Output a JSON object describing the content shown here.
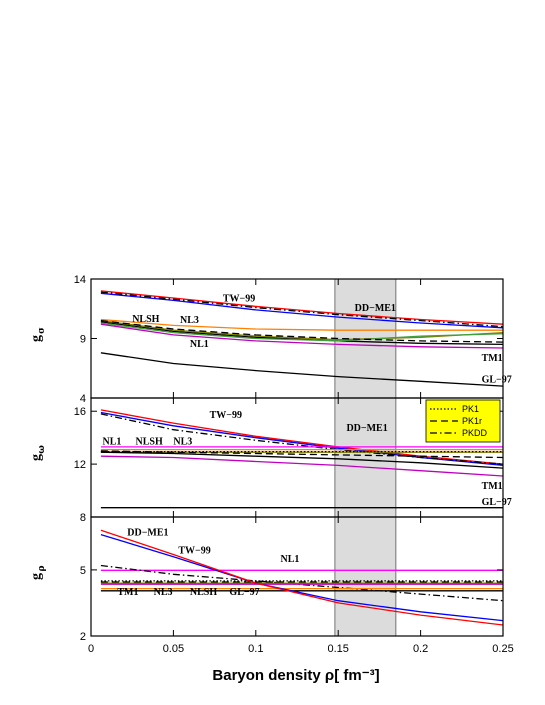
{
  "chart_data": {
    "type": "line",
    "xlabel": "Baryon density ρ[ fm⁻³]",
    "x_ticks": [
      "0",
      "0.05",
      "0.1",
      "0.15",
      "0.2",
      "0.25"
    ],
    "xlim": [
      0.0,
      0.25
    ],
    "shaded_band": [
      0.148,
      0.185
    ],
    "legend": {
      "placement": "top-right of middle panel",
      "entries": [
        {
          "label": "PK1",
          "dash": "dotted"
        },
        {
          "label": "PK1r",
          "dash": "dashed"
        },
        {
          "label": "PKDD",
          "dash": "dashdot"
        }
      ],
      "background": "#ffff00"
    },
    "panels": [
      {
        "id": "sigma",
        "ylabel": "g",
        "ylabel_sub": "σ",
        "ylim": [
          4,
          14
        ],
        "y_ticks": [
          "4",
          "9",
          "14"
        ],
        "labels": [
          {
            "text": "TW−99",
            "x": 0.08,
            "y": 12.1
          },
          {
            "text": "DD−ME1",
            "x": 0.16,
            "y": 11.3
          },
          {
            "text": "NLSH",
            "x": 0.025,
            "y": 10.4
          },
          {
            "text": "NL3",
            "x": 0.054,
            "y": 10.3
          },
          {
            "text": "NL1",
            "x": 0.06,
            "y": 8.3
          },
          {
            "text": "TM1",
            "x": 0.237,
            "y": 7.1
          },
          {
            "text": "GL−97",
            "x": 0.237,
            "y": 5.3
          }
        ],
        "series": [
          {
            "color": "#ff0000",
            "dash": "solid",
            "x": [
              0.006,
              0.05,
              0.1,
              0.15,
              0.2,
              0.25
            ],
            "y": [
              13.0,
              12.4,
              11.7,
              11.1,
              10.6,
              10.2
            ]
          },
          {
            "color": "#0000ff",
            "dash": "solid",
            "x": [
              0.006,
              0.05,
              0.1,
              0.15,
              0.2,
              0.25
            ],
            "y": [
              12.8,
              12.2,
              11.4,
              10.8,
              10.3,
              9.9
            ]
          },
          {
            "color": "#000000",
            "dash": "dashdot",
            "x": [
              0.006,
              0.05,
              0.1,
              0.15,
              0.2,
              0.25
            ],
            "y": [
              12.9,
              12.3,
              11.6,
              11.0,
              10.5,
              10.0
            ]
          },
          {
            "color": "#ff8000",
            "dash": "solid",
            "x": [
              0.006,
              0.05,
              0.1,
              0.15,
              0.2,
              0.25
            ],
            "y": [
              10.6,
              10.1,
              9.8,
              9.7,
              9.7,
              9.7
            ]
          },
          {
            "color": "#000000",
            "dash": "solid",
            "x": [
              0.006,
              0.05,
              0.1,
              0.15,
              0.2,
              0.25
            ],
            "y": [
              10.4,
              9.6,
              9.1,
              8.8,
              8.6,
              8.5
            ]
          },
          {
            "color": "#808000",
            "dash": "solid",
            "x": [
              0.006,
              0.05,
              0.1,
              0.15,
              0.2,
              0.25
            ],
            "y": [
              10.5,
              9.7,
              9.2,
              8.9,
              9.1,
              9.5
            ]
          },
          {
            "color": "#40a040",
            "dash": "solid",
            "x": [
              0.006,
              0.05,
              0.1,
              0.15,
              0.2,
              0.25
            ],
            "y": [
              10.3,
              9.5,
              9.0,
              8.8,
              9.2,
              9.4
            ]
          },
          {
            "color": "#000000",
            "dash": "dashed",
            "x": [
              0.006,
              0.05,
              0.1,
              0.15,
              0.2,
              0.25
            ],
            "y": [
              10.5,
              9.8,
              9.3,
              9.0,
              8.8,
              8.7
            ]
          },
          {
            "color": "#c000c0",
            "dash": "solid",
            "x": [
              0.006,
              0.05,
              0.1,
              0.15,
              0.2,
              0.25
            ],
            "y": [
              10.2,
              9.3,
              8.8,
              8.5,
              8.3,
              8.2
            ]
          },
          {
            "color": "#000000",
            "dash": "solid",
            "x": [
              0.006,
              0.05,
              0.1,
              0.15,
              0.2,
              0.25
            ],
            "y": [
              7.8,
              6.9,
              6.3,
              5.8,
              5.4,
              5.0
            ]
          }
        ]
      },
      {
        "id": "omega",
        "ylabel": "g",
        "ylabel_sub": "ω",
        "ylim": [
          8,
          17
        ],
        "y_ticks": [
          "8",
          "12",
          "16"
        ],
        "labels": [
          {
            "text": "TW−99",
            "x": 0.072,
            "y": 15.5
          },
          {
            "text": "DD−ME1",
            "x": 0.155,
            "y": 14.5
          },
          {
            "text": "NL1",
            "x": 0.007,
            "y": 13.5
          },
          {
            "text": "NLSH",
            "x": 0.027,
            "y": 13.5
          },
          {
            "text": "NL3",
            "x": 0.05,
            "y": 13.5
          },
          {
            "text": "TM1",
            "x": 0.237,
            "y": 10.1
          },
          {
            "text": "GL−97",
            "x": 0.237,
            "y": 8.9
          }
        ],
        "series": [
          {
            "color": "#ff0000",
            "dash": "solid",
            "x": [
              0.006,
              0.05,
              0.1,
              0.15,
              0.2,
              0.25
            ],
            "y": [
              16.1,
              15.1,
              14.1,
              13.3,
              12.6,
              12.0
            ]
          },
          {
            "color": "#0000ff",
            "dash": "solid",
            "x": [
              0.006,
              0.05,
              0.1,
              0.15,
              0.2,
              0.25
            ],
            "y": [
              15.9,
              14.9,
              14.0,
              13.2,
              12.5,
              11.9
            ]
          },
          {
            "color": "#000000",
            "dash": "dashdot",
            "x": [
              0.006,
              0.05,
              0.1,
              0.15,
              0.2,
              0.25
            ],
            "y": [
              15.8,
              14.6,
              13.8,
              13.1,
              12.5,
              12.0
            ]
          },
          {
            "color": "#ff00ff",
            "dash": "solid",
            "x": [
              0.006,
              0.25
            ],
            "y": [
              13.3,
              13.3
            ]
          },
          {
            "color": "#ff8000",
            "dash": "solid",
            "x": [
              0.006,
              0.25
            ],
            "y": [
              13.1,
              13.1
            ]
          },
          {
            "color": "#808000",
            "dash": "solid",
            "x": [
              0.006,
              0.25
            ],
            "y": [
              12.9,
              12.9
            ]
          },
          {
            "color": "#000000",
            "dash": "dotted",
            "x": [
              0.006,
              0.25
            ],
            "y": [
              12.95,
              12.95
            ]
          },
          {
            "color": "#000000",
            "dash": "dashed",
            "x": [
              0.006,
              0.05,
              0.1,
              0.15,
              0.2,
              0.25
            ],
            "y": [
              13.0,
              12.9,
              12.8,
              12.7,
              12.6,
              12.5
            ]
          },
          {
            "color": "#000000",
            "dash": "solid",
            "x": [
              0.006,
              0.05,
              0.1,
              0.15,
              0.2,
              0.25
            ],
            "y": [
              12.9,
              12.8,
              12.6,
              12.4,
              12.1,
              11.7
            ]
          },
          {
            "color": "#c000c0",
            "dash": "solid",
            "x": [
              0.006,
              0.05,
              0.1,
              0.15,
              0.2,
              0.25
            ],
            "y": [
              12.6,
              12.5,
              12.2,
              11.9,
              11.5,
              11.1
            ]
          },
          {
            "color": "#000000",
            "dash": "solid",
            "x": [
              0.006,
              0.25
            ],
            "y": [
              8.7,
              8.7
            ]
          }
        ]
      },
      {
        "id": "rho",
        "ylabel": "g",
        "ylabel_sub": "ρ",
        "ylim": [
          2,
          7.4
        ],
        "y_ticks": [
          "2",
          "5"
        ],
        "labels": [
          {
            "text": "DD−ME1",
            "x": 0.022,
            "y": 6.55
          },
          {
            "text": "TW−99",
            "x": 0.053,
            "y": 5.75
          },
          {
            "text": "NL1",
            "x": 0.115,
            "y": 5.35
          },
          {
            "text": "TM1",
            "x": 0.016,
            "y": 3.85
          },
          {
            "text": "NL3",
            "x": 0.038,
            "y": 3.85
          },
          {
            "text": "NLSH",
            "x": 0.06,
            "y": 3.85
          },
          {
            "text": "GL−97",
            "x": 0.084,
            "y": 3.85
          }
        ],
        "series": [
          {
            "color": "#ff00ff",
            "dash": "solid",
            "x": [
              0.006,
              0.25
            ],
            "y": [
              4.98,
              4.98
            ]
          },
          {
            "color": "#000000",
            "dash": "dashdot",
            "x": [
              0.006,
              0.05,
              0.1,
              0.15,
              0.2,
              0.25
            ],
            "y": [
              5.2,
              4.8,
              4.5,
              4.2,
              3.9,
              3.6
            ]
          },
          {
            "color": "#000000",
            "dash": "dotted",
            "x": [
              0.006,
              0.25
            ],
            "y": [
              4.5,
              4.5
            ]
          },
          {
            "color": "#000000",
            "dash": "dashed",
            "x": [
              0.006,
              0.25
            ],
            "y": [
              4.45,
              4.45
            ]
          },
          {
            "color": "#808000",
            "dash": "solid",
            "x": [
              0.006,
              0.25
            ],
            "y": [
              4.4,
              4.4
            ]
          },
          {
            "color": "#c000c0",
            "dash": "solid",
            "x": [
              0.006,
              0.25
            ],
            "y": [
              4.35,
              4.35
            ]
          },
          {
            "color": "#ff8000",
            "dash": "solid",
            "x": [
              0.006,
              0.25
            ],
            "y": [
              4.15,
              4.15
            ]
          },
          {
            "color": "#000000",
            "dash": "solid",
            "x": [
              0.006,
              0.25
            ],
            "y": [
              4.05,
              4.05
            ]
          },
          {
            "color": "#0000ff",
            "dash": "solid",
            "x": [
              0.006,
              0.05,
              0.1,
              0.15,
              0.2,
              0.25
            ],
            "y": [
              6.6,
              5.6,
              4.4,
              3.6,
              3.1,
              2.7
            ]
          },
          {
            "color": "#ff0000",
            "dash": "solid",
            "x": [
              0.006,
              0.05,
              0.1,
              0.15,
              0.2,
              0.25
            ],
            "y": [
              6.8,
              5.7,
              4.4,
              3.5,
              2.95,
              2.5
            ]
          }
        ]
      }
    ]
  }
}
